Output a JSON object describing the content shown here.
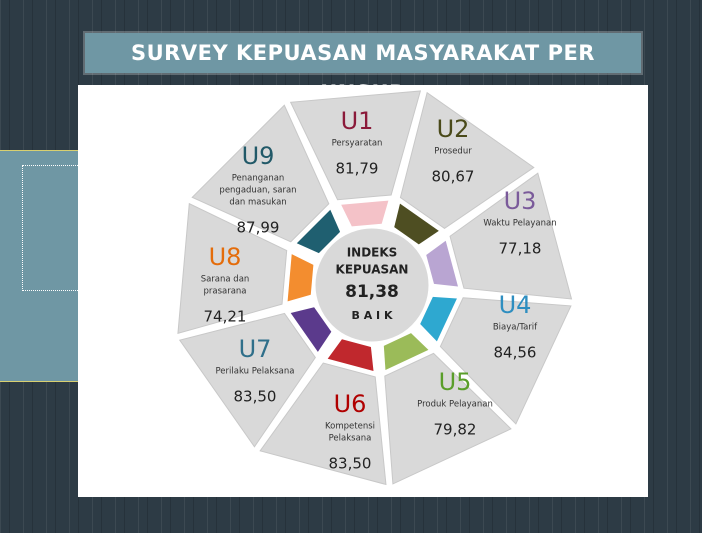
{
  "title": "SURVEY KEPUASAN MASYARAKAT PER UNSUR",
  "center": {
    "heading": [
      "INDEKS",
      "KEPUASAN"
    ],
    "value": "81,38",
    "grade": "B A I K"
  },
  "items": [
    {
      "code": "U1",
      "label": [
        "Persyaratan"
      ],
      "value": "81,79"
    },
    {
      "code": "U2",
      "label": [
        "Prosedur"
      ],
      "value": "80,67"
    },
    {
      "code": "U3",
      "label": [
        "Waktu Pelayanan"
      ],
      "value": "77,18"
    },
    {
      "code": "U4",
      "label": [
        "Biaya/Tarif"
      ],
      "value": "84,56"
    },
    {
      "code": "U5",
      "label": [
        "Produk Pelayanan"
      ],
      "value": "79,82"
    },
    {
      "code": "U6",
      "label": [
        "Kompetensi",
        "Pelaksana"
      ],
      "value": "83,50"
    },
    {
      "code": "U7",
      "label": [
        "Perilaku Pelaksana"
      ],
      "value": "83,50"
    },
    {
      "code": "U8",
      "label": [
        "Sarana dan",
        "prasarana"
      ],
      "value": "74,21"
    },
    {
      "code": "U9",
      "label": [
        "Penanganan",
        "pengaduan, saran",
        "dan masukan"
      ],
      "value": "87,99"
    }
  ]
}
